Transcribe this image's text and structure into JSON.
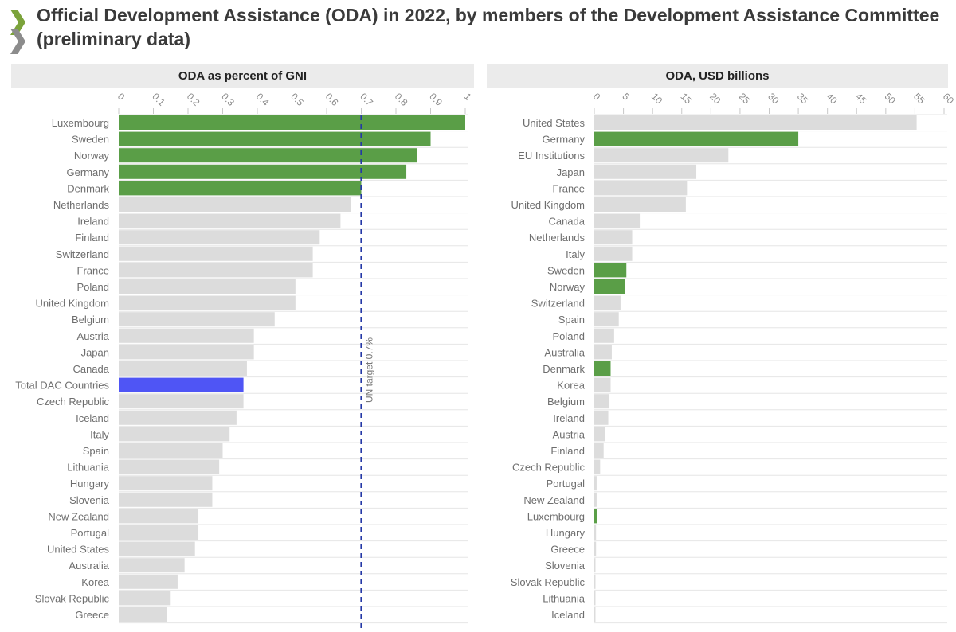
{
  "title": "Official Development Assistance (ODA) in 2022, by members of the Development Assistance Committee (preliminary data)",
  "colors": {
    "highlight": "#5a9e47",
    "total": "#4f55f5",
    "default": "#dcdcdc",
    "reference_line": "#2438a6",
    "logo": "#7ba33b"
  },
  "logo": {
    "name": "chevron-logo-icon"
  },
  "chart_data": [
    {
      "type": "bar",
      "orientation": "horizontal",
      "title": "ODA as percent of GNI",
      "xlim": [
        0,
        1
      ],
      "xticks": [
        0,
        0.1,
        0.2,
        0.3,
        0.4,
        0.5,
        0.6,
        0.7,
        0.8,
        0.9,
        1
      ],
      "xtick_labels": [
        "0",
        "0.1",
        "0.2",
        "0.3",
        "0.4",
        "0.5",
        "0.6",
        "0.7",
        "0.8",
        "0.9",
        "1"
      ],
      "categories": [
        "Luxembourg",
        "Sweden",
        "Norway",
        "Germany",
        "Denmark",
        "Netherlands",
        "Ireland",
        "Finland",
        "Switzerland",
        "France",
        "Poland",
        "United Kingdom",
        "Belgium",
        "Austria",
        "Japan",
        "Canada",
        "Total DAC Countries",
        "Czech Republic",
        "Iceland",
        "Italy",
        "Spain",
        "Lithuania",
        "Hungary",
        "Slovenia",
        "New Zealand",
        "Portugal",
        "United States",
        "Australia",
        "Korea",
        "Slovak Republic",
        "Greece"
      ],
      "values": [
        1.0,
        0.9,
        0.86,
        0.83,
        0.7,
        0.67,
        0.64,
        0.58,
        0.56,
        0.56,
        0.51,
        0.51,
        0.45,
        0.39,
        0.39,
        0.37,
        0.36,
        0.36,
        0.34,
        0.32,
        0.3,
        0.29,
        0.27,
        0.27,
        0.23,
        0.23,
        0.22,
        0.19,
        0.17,
        0.15,
        0.14
      ],
      "highlighted": [
        "Luxembourg",
        "Sweden",
        "Norway",
        "Germany",
        "Denmark"
      ],
      "total": [
        "Total DAC Countries"
      ],
      "reference_line": {
        "value": 0.7,
        "label": "UN target 0.7%"
      },
      "grid": true
    },
    {
      "type": "bar",
      "orientation": "horizontal",
      "title": "ODA, USD billions",
      "xlim": [
        0,
        60
      ],
      "xticks": [
        0,
        5,
        10,
        15,
        20,
        25,
        30,
        35,
        40,
        45,
        50,
        55,
        60
      ],
      "xtick_labels": [
        "0",
        "5",
        "10",
        "15",
        "20",
        "25",
        "30",
        "35",
        "40",
        "45",
        "50",
        "55",
        "60"
      ],
      "categories": [
        "United States",
        "Germany",
        "EU Institutions",
        "Japan",
        "France",
        "United Kingdom",
        "Canada",
        "Netherlands",
        "Italy",
        "Sweden",
        "Norway",
        "Switzerland",
        "Spain",
        "Poland",
        "Australia",
        "Denmark",
        "Korea",
        "Belgium",
        "Ireland",
        "Austria",
        "Finland",
        "Czech Republic",
        "Portugal",
        "New Zealand",
        "Luxembourg",
        "Hungary",
        "Greece",
        "Slovenia",
        "Slovak Republic",
        "Lithuania",
        "Iceland"
      ],
      "values": [
        55.3,
        35.0,
        23.0,
        17.5,
        15.9,
        15.7,
        7.8,
        6.5,
        6.5,
        5.5,
        5.2,
        4.5,
        4.2,
        3.4,
        3.0,
        2.8,
        2.8,
        2.6,
        2.4,
        1.9,
        1.6,
        1.0,
        0.4,
        0.4,
        0.5,
        0.3,
        0.3,
        0.1,
        0.1,
        0.1,
        0.1
      ],
      "highlighted": [
        "Germany",
        "Sweden",
        "Norway",
        "Denmark",
        "Luxembourg"
      ],
      "total": [],
      "grid": true
    }
  ]
}
